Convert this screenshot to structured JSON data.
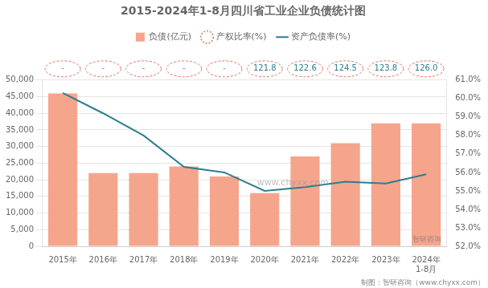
{
  "chart_data": {
    "type": "bar",
    "title": "2015-2024年1-8月四川省工业企业负债统计图",
    "categories": [
      "2015年",
      "2016年",
      "2017年",
      "2018年",
      "2019年",
      "2020年",
      "2021年",
      "2022年",
      "2023年",
      "2024年\n1-8月"
    ],
    "series": [
      {
        "name": "负债(亿元)",
        "type": "bar",
        "color": "#F5A58C",
        "values": [
          46000,
          22000,
          22000,
          24000,
          21000,
          16000,
          27000,
          31000,
          37000,
          37000
        ]
      },
      {
        "name": "产权比率(%)",
        "type": "text",
        "color": "#E07060",
        "marker": "circle",
        "line_style": "dashed",
        "values": [
          null,
          null,
          null,
          null,
          null,
          121.8,
          122.6,
          124.5,
          123.8,
          126.0
        ],
        "value_labels": [
          "-",
          "-",
          "-",
          "-",
          "-",
          "121.8",
          "122.6",
          "124.5",
          "123.8",
          "126.0"
        ]
      },
      {
        "name": "资产负债率(%)",
        "type": "line",
        "axis": "y2",
        "color": "#2E7D8F",
        "values": [
          60.3,
          59.2,
          58.0,
          56.3,
          56.0,
          55.0,
          55.2,
          55.5,
          55.4,
          55.9
        ]
      }
    ],
    "ylim": [
      0,
      50000
    ],
    "yticks": [
      0,
      {
        "value": 5000,
        "label": "5,000"
      },
      {
        "value": 10000,
        "label": "10,000"
      },
      {
        "value": 15000,
        "label": "15,000"
      },
      {
        "value": 20000,
        "label": "20,000"
      },
      {
        "value": 25000,
        "label": "25,000"
      },
      {
        "value": 30000,
        "label": "30,000"
      },
      {
        "value": 35000,
        "label": "35,000"
      },
      {
        "value": 40000,
        "label": "40,000"
      },
      {
        "value": 45000,
        "label": "45,000"
      },
      {
        "value": 50000,
        "label": "50,000"
      }
    ],
    "y2lim": [
      52,
      61
    ],
    "y2ticks": [
      {
        "value": 52,
        "label": "52.0%"
      },
      {
        "value": 53,
        "label": "53.0%"
      },
      {
        "value": 54,
        "label": "54.0%"
      },
      {
        "value": 55,
        "label": "55.0%"
      },
      {
        "value": 56,
        "label": "56.0%"
      },
      {
        "value": 57,
        "label": "57.0%"
      },
      {
        "value": 58,
        "label": "58.0%"
      },
      {
        "value": 59,
        "label": "59.0%"
      },
      {
        "value": 60,
        "label": "60.0%"
      },
      {
        "value": 61,
        "label": "61.0%"
      }
    ],
    "grid": true,
    "legend": "top",
    "annotations": [
      "制图：智研咨询（www.chyxx.com）",
      "www.chyxx.com",
      "智研咨询"
    ]
  }
}
